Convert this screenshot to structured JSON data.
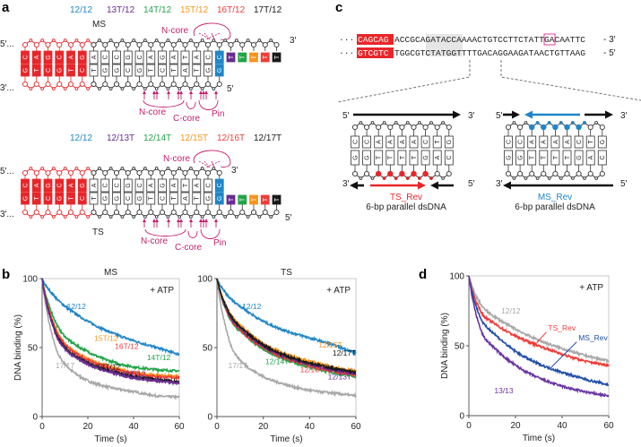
{
  "panel_labels": {
    "a": "a",
    "b": "b",
    "c": "c",
    "d": "d"
  },
  "colors": {
    "red": "#e8262a",
    "blue": "#1f86c8",
    "purple": "#6a2c91",
    "green": "#22a449",
    "orange": "#f7941d",
    "ored": "#ee3d3a",
    "black": "#1a1a1a",
    "magenta": "#c4206f",
    "gray": "#a8a8a8",
    "navy": "#1f4ea8",
    "violet": "#6a35a3"
  },
  "panel_a": {
    "ms": {
      "legend": [
        {
          "text": "12/12",
          "color": "#1f86c8"
        },
        {
          "text": "13T/12",
          "color": "#6a2c91"
        },
        {
          "text": "14T/12",
          "color": "#22a449"
        },
        {
          "text": "15T/12",
          "color": "#f7941d"
        },
        {
          "text": "16T/12",
          "color": "#ee3d3a"
        },
        {
          "text": "17T/12",
          "color": "#1a1a1a"
        }
      ],
      "strand_label": "MS",
      "five_prime": "5′...",
      "three_prime_left": "3′...",
      "three_prime_right": "3′",
      "five_prime_right": "5′",
      "top": [
        "C",
        "A",
        "G",
        "C",
        "A",
        "G",
        "A",
        "C",
        "C",
        "G",
        "C",
        "A",
        "G",
        "A",
        "T",
        "A",
        "C",
        "C",
        "T",
        "T",
        "T",
        "T",
        "T"
      ],
      "bottom": [
        "G",
        "T",
        "C",
        "G",
        "T",
        "C",
        "T",
        "G",
        "G",
        "C",
        "G",
        "T",
        "C",
        "T",
        "A",
        "T",
        "G",
        "G"
      ],
      "n_core_top": "N-core",
      "n_core_bottom": "N-core",
      "c_core": "C-core",
      "pin": "Pin"
    },
    "ts": {
      "legend": [
        {
          "text": "12/12",
          "color": "#1f86c8"
        },
        {
          "text": "12/13T",
          "color": "#6a2c91"
        },
        {
          "text": "12/14T",
          "color": "#22a449"
        },
        {
          "text": "12/15T",
          "color": "#f7941d"
        },
        {
          "text": "12/16T",
          "color": "#ee3d3a"
        },
        {
          "text": "12/17T",
          "color": "#1a1a1a"
        }
      ],
      "strand_label": "TS",
      "five_prime": "5′...",
      "three_prime_left": "3′...",
      "three_prime_right": "3′",
      "five_prime_right": "5′",
      "top": [
        "C",
        "A",
        "G",
        "C",
        "A",
        "G",
        "A",
        "C",
        "C",
        "G",
        "C",
        "A",
        "G",
        "A",
        "T",
        "A",
        "C",
        "C"
      ],
      "bottom": [
        "G",
        "T",
        "C",
        "G",
        "T",
        "C",
        "T",
        "G",
        "G",
        "C",
        "G",
        "T",
        "C",
        "T",
        "A",
        "T",
        "G",
        "G",
        "T",
        "T",
        "T",
        "T",
        "T"
      ],
      "n_core_top": "N-core",
      "n_core_bottom": "N-core",
      "c_core": "C-core",
      "pin": "Pin"
    }
  },
  "panel_c": {
    "top_prefix": "···",
    "top_red": "CAGCAG",
    "top_seq": "ACCGCAGATACCAAAACTGTCCTTCTATTGACAATTC",
    "top_end": "- 3′",
    "bottom_prefix": "···",
    "bottom_red": "GTCGTC",
    "bottom_seq": "TGGCGTCTATGGTTTTGACAGGAAGATAACTGTTAAG",
    "bottom_end": "- 5′",
    "left": {
      "top_label_5": "5′",
      "top_label_3": "3′",
      "bottom_label_3": "3′",
      "bottom_label_5": "5′",
      "top": [
        "C",
        "C",
        "A",
        "A",
        "A",
        "A",
        "C",
        "T",
        "G"
      ],
      "bottom": [
        "G",
        "G",
        "T",
        "T",
        "T",
        "T",
        "G",
        "A",
        "C"
      ],
      "name": "TS_Rev",
      "desc": "6-bp parallel dsDNA"
    },
    "right": {
      "top_label_5": "5′",
      "top_label_3": "3′",
      "bottom_label_3": "3′",
      "bottom_label_5": "5′",
      "top": [
        "C",
        "C",
        "A",
        "A",
        "A",
        "A",
        "C",
        "T",
        "G"
      ],
      "bottom": [
        "G",
        "G",
        "T",
        "T",
        "T",
        "T",
        "G",
        "A",
        "C"
      ],
      "name": "MS_Rev",
      "desc": "6-bp parallel dsDNA"
    }
  },
  "chart_data": [
    {
      "type": "line",
      "panel": "b",
      "title": "MS",
      "xlabel": "Time (s)",
      "ylabel": "DNA binding (%)",
      "xlim": [
        0,
        60
      ],
      "ylim": [
        0,
        100
      ],
      "xticks": [
        0,
        20,
        40,
        60
      ],
      "yticks": [
        0,
        50,
        100
      ],
      "annotation": "+ ATP",
      "x": [
        0,
        5,
        10,
        20,
        30,
        40,
        50,
        60
      ],
      "series": [
        {
          "name": "17/17",
          "color": "#a8a8a8",
          "values": [
            100,
            55,
            38,
            26,
            21,
            18,
            15,
            14
          ],
          "label_at": [
            10,
            35
          ]
        },
        {
          "name": "12/12",
          "color": "#1f86c8",
          "values": [
            100,
            88,
            80,
            69,
            61,
            55,
            50,
            45
          ],
          "label_at": [
            15,
            78
          ]
        },
        {
          "name": "14T/12",
          "color": "#22a449",
          "values": [
            100,
            72,
            58,
            47,
            40,
            36,
            34,
            33
          ],
          "label_at": [
            51,
            41
          ]
        },
        {
          "name": "15T/12",
          "color": "#f7941d",
          "values": [
            100,
            68,
            53,
            42,
            36,
            32,
            30,
            29
          ],
          "label_at": [
            28,
            55
          ]
        },
        {
          "name": "16T/12",
          "color": "#ee3d3a",
          "values": [
            100,
            67,
            52,
            41,
            35,
            31,
            29,
            28
          ],
          "label_at": [
            37,
            49
          ]
        },
        {
          "name": "17T/12",
          "color": "#1a1a1a",
          "values": [
            100,
            65,
            50,
            39,
            33,
            29,
            27,
            25
          ],
          "label_at": [
            29,
            34
          ]
        },
        {
          "name": "13T/12",
          "color": "#6a2c91",
          "values": [
            100,
            64,
            49,
            38,
            32,
            28,
            26,
            24
          ],
          "label_at": [
            40,
            29
          ]
        }
      ]
    },
    {
      "type": "line",
      "panel": "b",
      "title": "TS",
      "xlabel": "Time (s)",
      "ylabel": "",
      "xlim": [
        0,
        60
      ],
      "ylim": [
        0,
        100
      ],
      "xticks": [
        0,
        20,
        40,
        60
      ],
      "yticks": [
        0,
        50,
        100
      ],
      "annotation": "+ ATP",
      "x": [
        0,
        5,
        10,
        20,
        30,
        40,
        50,
        60
      ],
      "series": [
        {
          "name": "17/17",
          "color": "#a8a8a8",
          "values": [
            100,
            57,
            41,
            29,
            23,
            19,
            17,
            15
          ],
          "label_at": [
            9,
            35
          ]
        },
        {
          "name": "12/12",
          "color": "#1f86c8",
          "values": [
            100,
            87,
            80,
            69,
            62,
            57,
            52,
            46
          ],
          "label_at": [
            15,
            78
          ]
        },
        {
          "name": "12/14T",
          "color": "#22a449",
          "values": [
            100,
            73,
            62,
            49,
            41,
            36,
            32,
            29
          ],
          "label_at": [
            26,
            38
          ]
        },
        {
          "name": "12/16T",
          "color": "#ee3d3a",
          "values": [
            100,
            74,
            63,
            50,
            42,
            37,
            33,
            30
          ],
          "label_at": [
            41,
            32
          ]
        },
        {
          "name": "12/13T",
          "color": "#6a2c91",
          "values": [
            100,
            75,
            64,
            51,
            43,
            38,
            34,
            31
          ],
          "label_at": [
            53,
            27
          ]
        },
        {
          "name": "12/15T",
          "color": "#f7941d",
          "values": [
            100,
            77,
            66,
            53,
            45,
            40,
            36,
            33
          ],
          "label_at": [
            49,
            50
          ]
        },
        {
          "name": "12/17T",
          "color": "#1a1a1a",
          "values": [
            100,
            76,
            65,
            52,
            44,
            39,
            35,
            32
          ],
          "label_at": [
            55,
            44
          ]
        }
      ]
    },
    {
      "type": "line",
      "panel": "d",
      "title": "",
      "xlabel": "Time (s)",
      "ylabel": "DNA binding (%)",
      "xlim": [
        0,
        60
      ],
      "ylim": [
        0,
        100
      ],
      "xticks": [
        0,
        20,
        40,
        60
      ],
      "yticks": [
        0,
        50,
        100
      ],
      "annotation": "+ ATP",
      "x": [
        0,
        5,
        10,
        20,
        30,
        40,
        50,
        60
      ],
      "series": [
        {
          "name": "12/12",
          "color": "#a8a8a8",
          "values": [
            100,
            80,
            72,
            62,
            54,
            48,
            43,
            39
          ],
          "label_at": [
            18,
            73
          ]
        },
        {
          "name": "TS_Rev",
          "color": "#ee3d3a",
          "values": [
            100,
            75,
            67,
            57,
            50,
            44,
            39,
            36
          ],
          "label_at": [
            34,
            61
          ],
          "leader_to": [
            29,
            52
          ]
        },
        {
          "name": "MS_Rev",
          "color": "#1f4ea8",
          "values": [
            100,
            70,
            60,
            46,
            37,
            31,
            26,
            22
          ],
          "label_at": [
            47,
            54
          ],
          "leader_to": [
            35,
            34
          ]
        },
        {
          "name": "13/13",
          "color": "#6a35a3",
          "values": [
            100,
            62,
            50,
            36,
            27,
            21,
            17,
            14
          ],
          "label_at": [
            15,
            16
          ]
        }
      ]
    }
  ]
}
